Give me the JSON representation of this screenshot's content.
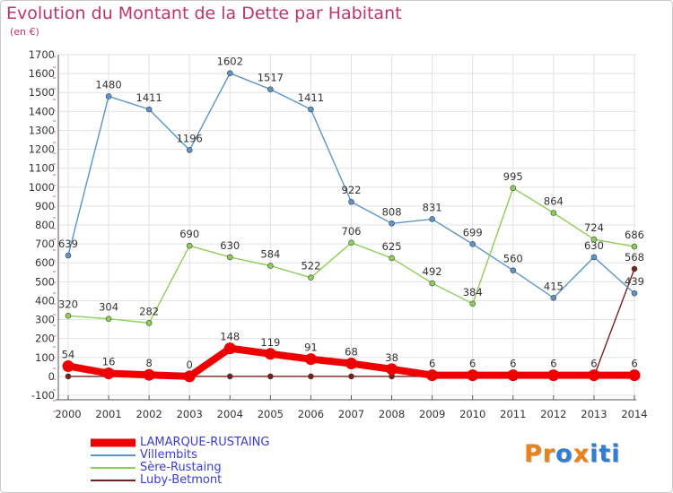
{
  "title": "Evolution du Montant de la Dette par Habitant",
  "subtitle": "(en €)",
  "logo": {
    "letters": [
      "P",
      "r",
      "o",
      "x",
      "i",
      "t",
      "i"
    ],
    "colors": [
      "#e8831a",
      "#e8831a",
      "#2e7fd1",
      "#e8831a",
      "#2e7fd1",
      "#2e7fd1",
      "#2e7fd1"
    ]
  },
  "chart_data": {
    "type": "line",
    "title": "Evolution du Montant de la Dette par Habitant",
    "ylabel": "(en €)",
    "x": [
      "2000",
      "2001",
      "2002",
      "2003",
      "2004",
      "2005",
      "2006",
      "2007",
      "2008",
      "2009",
      "2010",
      "2011",
      "2012",
      "2013",
      "2014"
    ],
    "yticks": [
      -100,
      0,
      100,
      200,
      300,
      400,
      500,
      600,
      700,
      800,
      900,
      1000,
      1100,
      1200,
      1300,
      1400,
      1500,
      1600,
      1700
    ],
    "ylim": [
      -100,
      1700
    ],
    "grid": true,
    "legend": "bottom-left",
    "series": [
      {
        "name": "Luby-Betmont",
        "color": "#7a1f1f",
        "values": [
          0,
          0,
          0,
          0,
          0,
          0,
          0,
          0,
          0,
          0,
          0,
          0,
          0,
          0,
          568
        ],
        "labels": [
          "",
          "",
          "",
          "",
          "",
          "",
          "",
          "",
          "",
          "",
          "",
          "",
          "",
          "",
          "568"
        ]
      },
      {
        "name": "LAMARQUE-RUSTAING",
        "color": "#ee0000",
        "values": [
          54,
          16,
          8,
          0,
          148,
          119,
          91,
          68,
          38,
          6,
          6,
          6,
          6,
          6,
          6
        ],
        "labels": [
          "54",
          "16",
          "8",
          "0",
          "148",
          "119",
          "91",
          "68",
          "38",
          "6",
          "6",
          "6",
          "6",
          "6",
          "6"
        ]
      },
      {
        "name": "Villembits",
        "color": "#5a94c8",
        "values": [
          639,
          1480,
          1411,
          1196,
          1602,
          1517,
          1411,
          922,
          808,
          831,
          699,
          560,
          415,
          630,
          439
        ],
        "labels": [
          "639",
          "1480",
          "1411",
          "1196",
          "1602",
          "1517",
          "1411",
          "922",
          "808",
          "831",
          "699",
          "560",
          "415",
          "630",
          "439"
        ]
      },
      {
        "name": "Sère-Rustaing",
        "color": "#8ccf56",
        "values": [
          320,
          304,
          282,
          690,
          630,
          584,
          522,
          706,
          625,
          492,
          384,
          995,
          864,
          724,
          686
        ],
        "labels": [
          "320",
          "304",
          "282",
          "690",
          "630",
          "584",
          "522",
          "706",
          "625",
          "492",
          "384",
          "995",
          "864",
          "724",
          "686"
        ]
      }
    ]
  },
  "legend_items": [
    {
      "name": "LAMARQUE-RUSTAING",
      "color": "#ee0000",
      "thick": true
    },
    {
      "name": "Villembits",
      "color": "#5a94c8",
      "thick": false
    },
    {
      "name": "Sère-Rustaing",
      "color": "#8ccf56",
      "thick": false
    },
    {
      "name": "Luby-Betmont",
      "color": "#7a1f1f",
      "thick": false
    }
  ]
}
